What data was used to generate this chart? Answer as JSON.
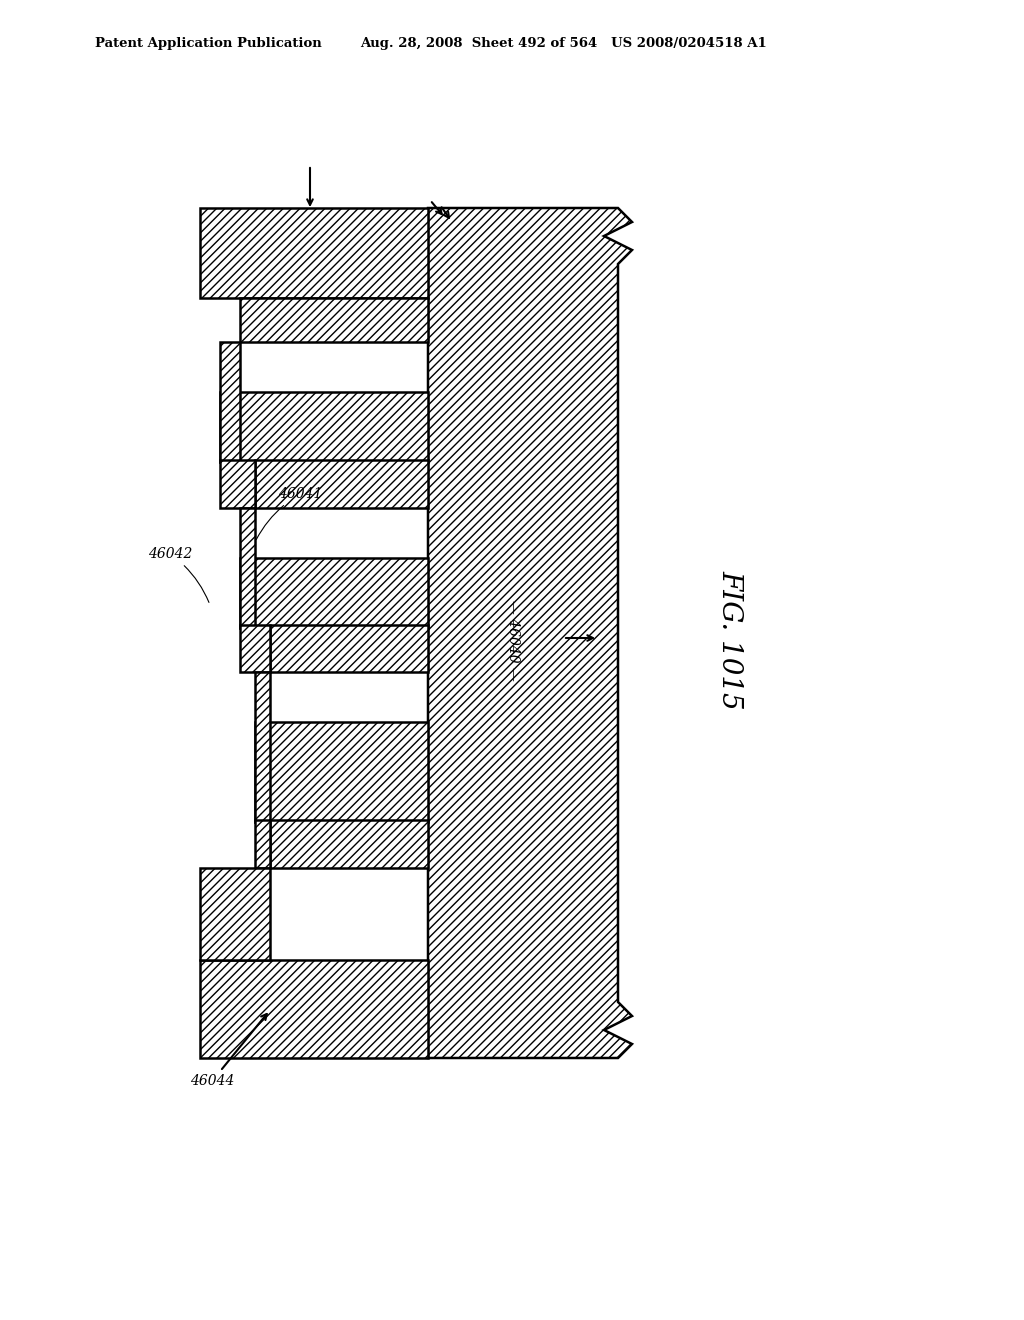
{
  "header1": "Patent Application Publication",
  "header2": "Aug. 28, 2008  Sheet 492 of 564   US 2008/0204518 A1",
  "fig_label": "FIG. 1015",
  "label_46040": "46040",
  "label_46041": "46041",
  "label_46042": "46042",
  "label_46044": "46044",
  "bg_color": "#ffffff",
  "lw": 1.8
}
